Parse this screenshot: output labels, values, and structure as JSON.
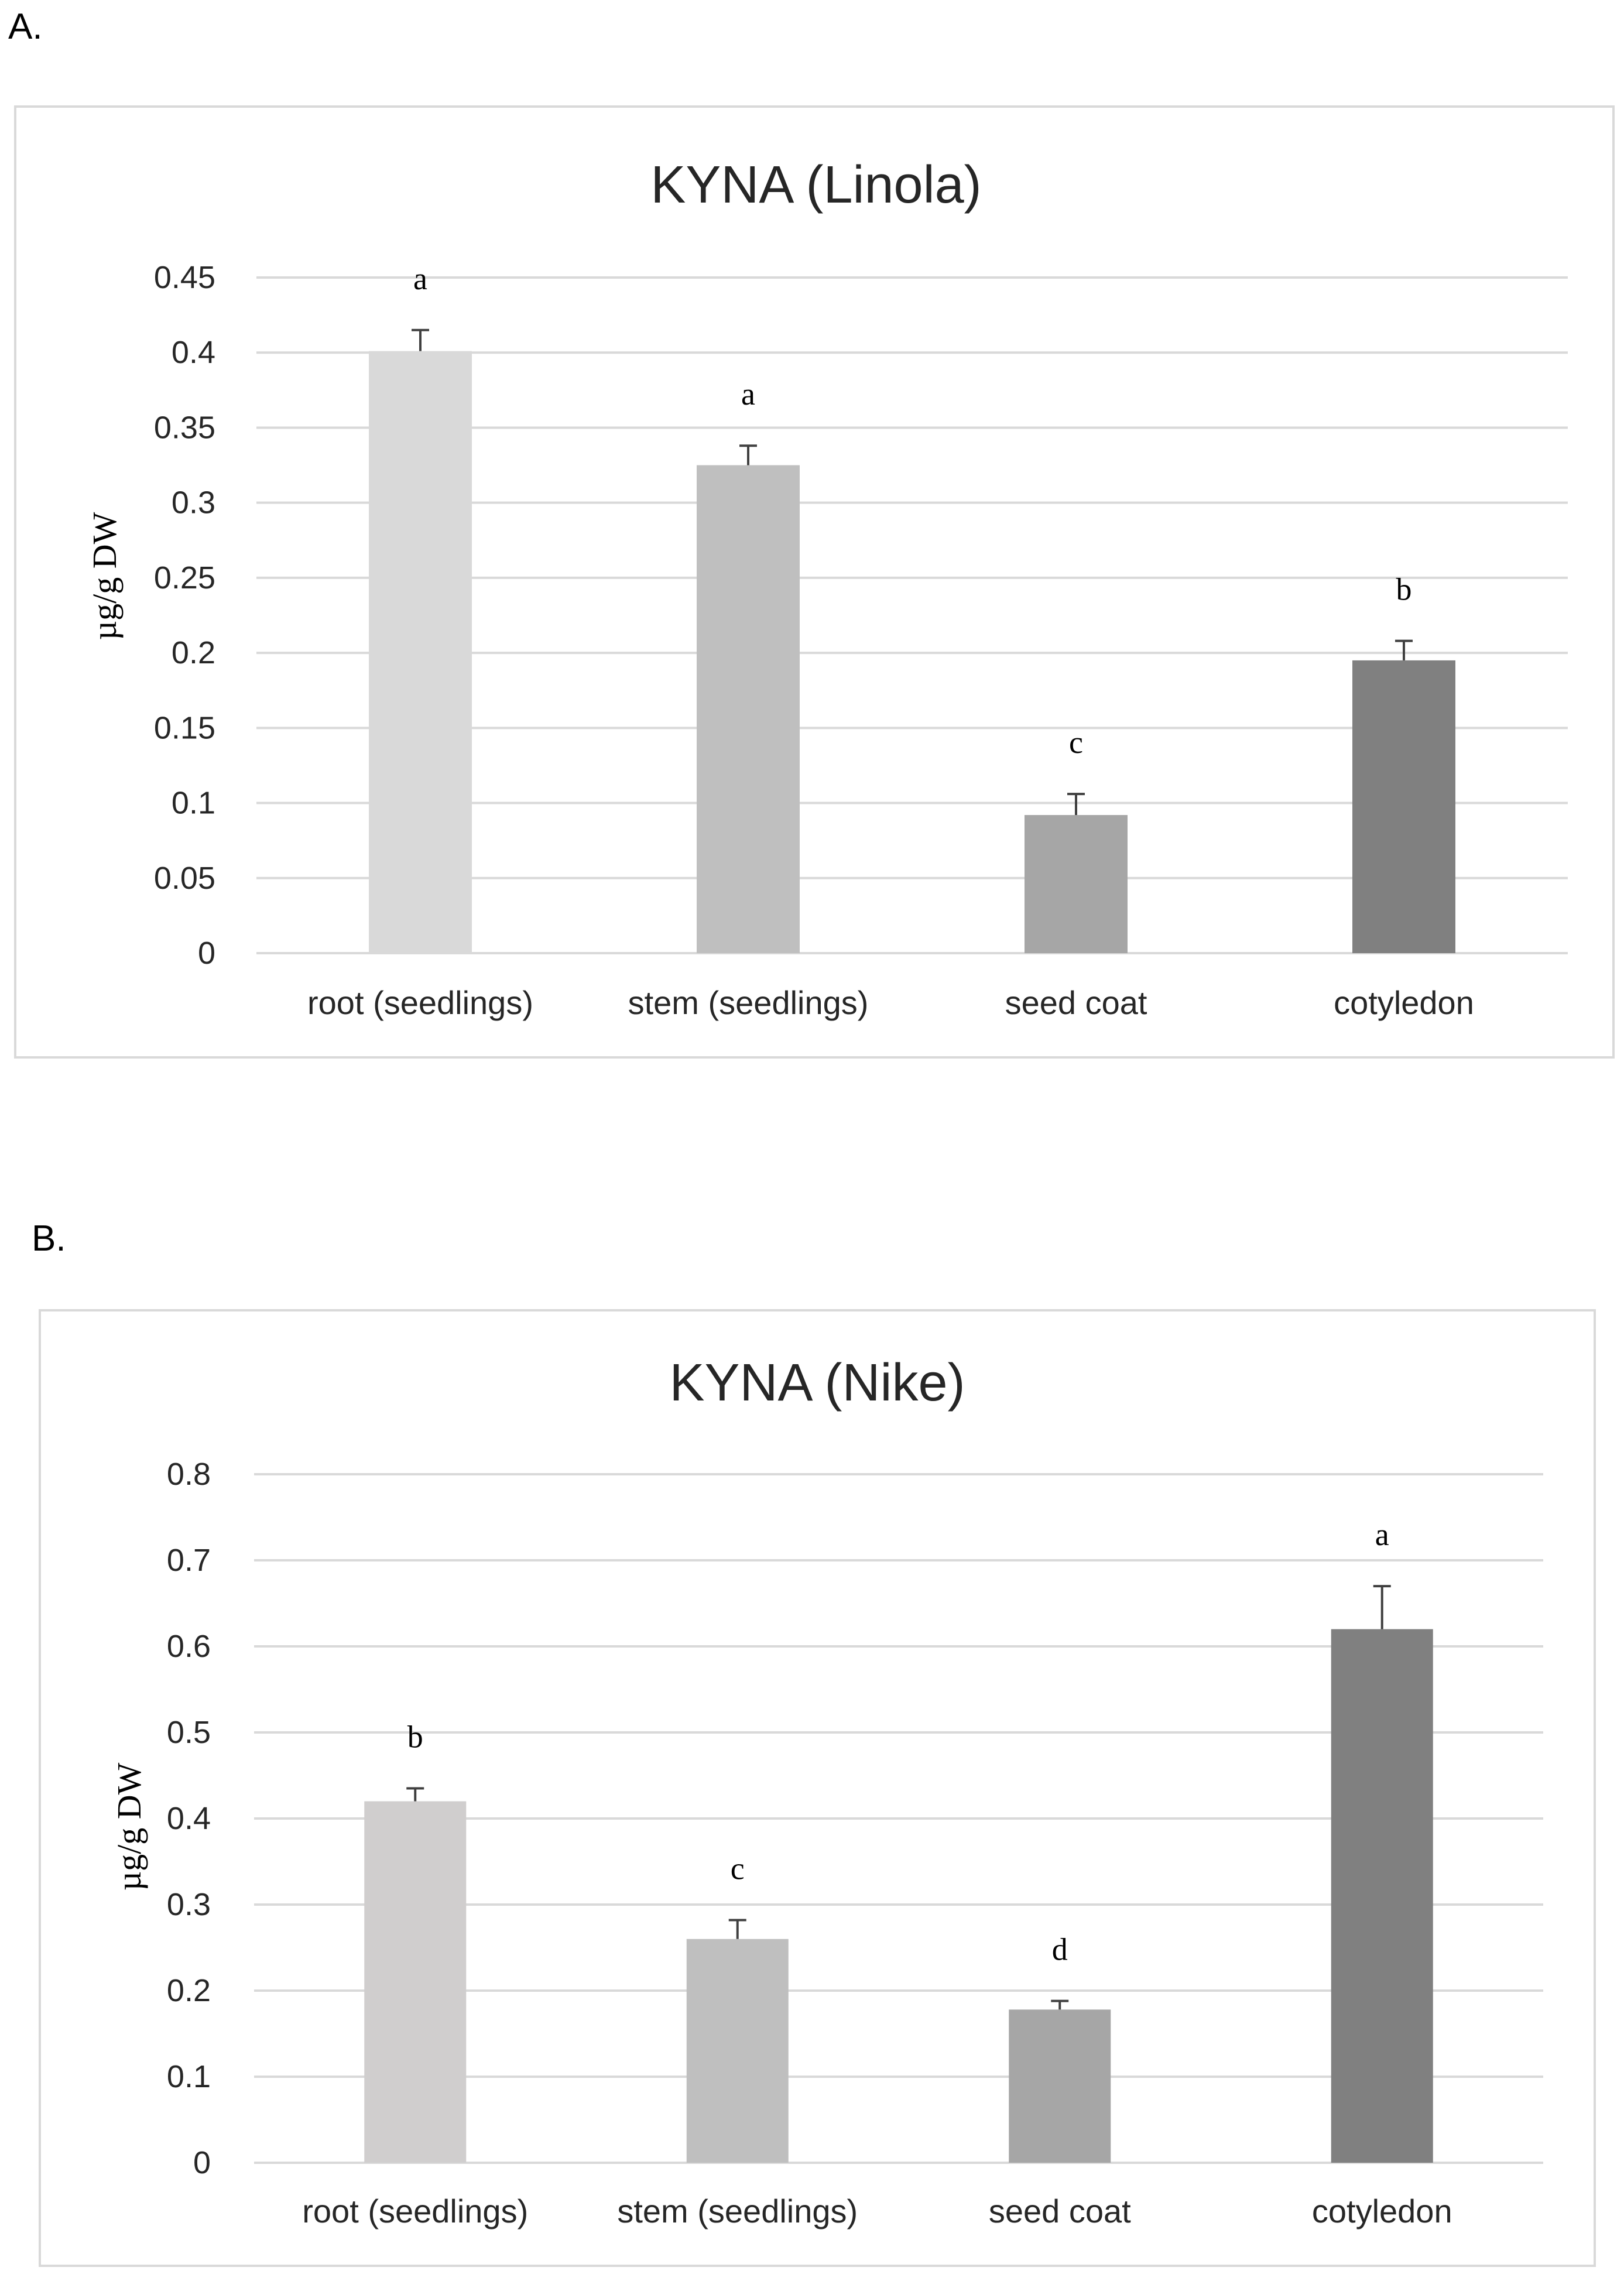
{
  "panels": [
    {
      "label": "A."
    },
    {
      "label": "B."
    }
  ],
  "chart_data": [
    {
      "type": "bar",
      "title": "KYNA (Linola)",
      "xlabel": "",
      "ylabel": "µg/g DW",
      "ylim": [
        0,
        0.45
      ],
      "yticks": [
        "0",
        "0.05",
        "0.1",
        "0.15",
        "0.2",
        "0.25",
        "0.3",
        "0.35",
        "0.4",
        "0.45"
      ],
      "categories": [
        "root (seedlings)",
        "stem (seedlings)",
        "seed coat",
        "cotyledon"
      ],
      "values": [
        0.401,
        0.325,
        0.092,
        0.195
      ],
      "errors": [
        0.014,
        0.013,
        0.014,
        0.013
      ],
      "significance": [
        "a",
        "a",
        "c",
        "b"
      ],
      "colors": [
        "#d9d9d9",
        "#bfbfbf",
        "#a6a6a6",
        "#808080"
      ],
      "grid": true
    },
    {
      "type": "bar",
      "title": "KYNA (Nike)",
      "xlabel": "",
      "ylabel": "µg/g DW",
      "ylim": [
        0,
        0.8
      ],
      "yticks": [
        "0",
        "0.1",
        "0.2",
        "0.3",
        "0.4",
        "0.5",
        "0.6",
        "0.7",
        "0.8"
      ],
      "categories": [
        "root (seedlings)",
        "stem (seedlings)",
        "seed coat",
        "cotyledon"
      ],
      "values": [
        0.42,
        0.26,
        0.178,
        0.62
      ],
      "errors": [
        0.015,
        0.022,
        0.01,
        0.05
      ],
      "significance": [
        "b",
        "c",
        "d",
        "a"
      ],
      "colors": [
        "#d0cece",
        "#bfbfbf",
        "#a6a6a6",
        "#808080"
      ],
      "grid": true
    }
  ]
}
